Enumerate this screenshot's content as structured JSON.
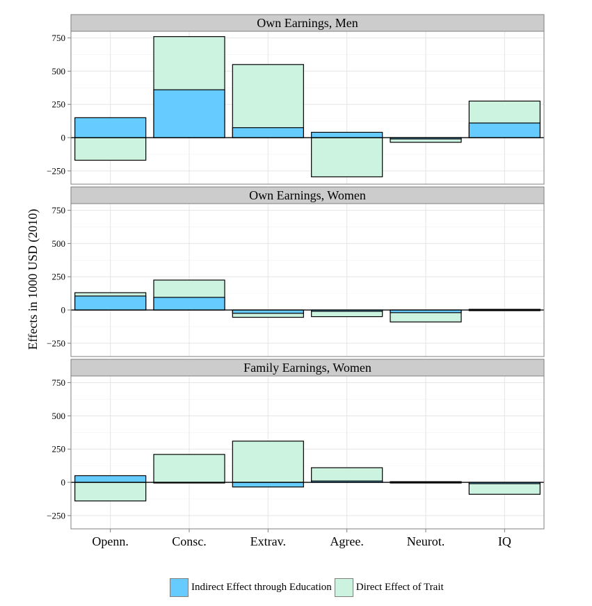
{
  "chart_data": {
    "type": "bar",
    "stacking": "overlaid stacked bars per category",
    "ylabel": "Effects in 1000 USD (2010)",
    "xlabel": "",
    "categories": [
      "Openn.",
      "Consc.",
      "Extrav.",
      "Agree.",
      "Neurot.",
      "IQ"
    ],
    "ylim": [
      -350,
      800
    ],
    "yticks": [
      -250,
      0,
      250,
      500,
      750
    ],
    "ytick_labels": [
      "−250",
      "0",
      "250",
      "500",
      "750"
    ],
    "grid": true,
    "legend_position": "bottom",
    "series_info": [
      {
        "key": "indirect",
        "name": "Indirect Effect through Education",
        "color": "#66ccff"
      },
      {
        "key": "direct",
        "name": "Direct Effect of Trait",
        "color": "#ccf2e0"
      }
    ],
    "panels": [
      {
        "title": "Own Earnings, Men",
        "indirect": [
          150,
          360,
          75,
          40,
          -10,
          110
        ],
        "total": [
          -170,
          760,
          550,
          -295,
          -35,
          275
        ]
      },
      {
        "title": "Own Earnings, Women",
        "indirect": [
          105,
          95,
          -25,
          -10,
          -20,
          5
        ],
        "total": [
          130,
          225,
          -55,
          -50,
          -90,
          0
        ]
      },
      {
        "title": "Family Earnings, Women",
        "indirect": [
          50,
          -5,
          -35,
          10,
          5,
          -10
        ],
        "total": [
          -140,
          210,
          310,
          110,
          -5,
          -90
        ]
      }
    ]
  }
}
